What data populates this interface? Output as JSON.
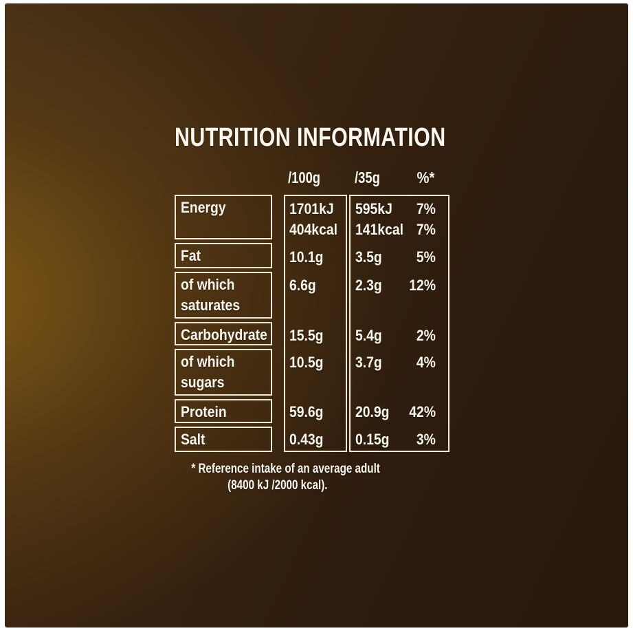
{
  "title": "NUTRITION INFORMATION",
  "table": {
    "header": {
      "per100g": "/100g",
      "per35g": "/35g",
      "percent": "%*"
    },
    "rows": [
      {
        "label": "Energy",
        "per100g": "1701kJ",
        "per100g_line2": "404kcal",
        "per35g": "595kJ",
        "per35g_line2": "141kcal",
        "percent": "7%",
        "percent_line2": "7%"
      },
      {
        "label": "Fat",
        "per100g": "10.1g",
        "per35g": "3.5g",
        "percent": "5%"
      },
      {
        "label": "of which saturates",
        "per100g": "6.6g",
        "per35g": "2.3g",
        "percent": "12%"
      },
      {
        "label": "Carbohydrate",
        "per100g": "15.5g",
        "per35g": "5.4g",
        "percent": "2%"
      },
      {
        "label": "of which sugars",
        "per100g": "10.5g",
        "per35g": "3.7g",
        "percent": "4%"
      },
      {
        "label": "Protein",
        "per100g": "59.6g",
        "per35g": "20.9g",
        "percent": "42%"
      },
      {
        "label": "Salt",
        "per100g": "0.43g",
        "per35g": "0.15g",
        "percent": "3%"
      }
    ]
  },
  "footnote": {
    "line1": "* Reference intake of an average adult",
    "line2": "(8400 kJ /2000 kcal)."
  },
  "colors": {
    "frame": "#ffffff",
    "background_dark": "#2a180c",
    "background_glow": "#7a5516",
    "cell_border": "#f1e9d8",
    "text": "#fbf8f0"
  }
}
